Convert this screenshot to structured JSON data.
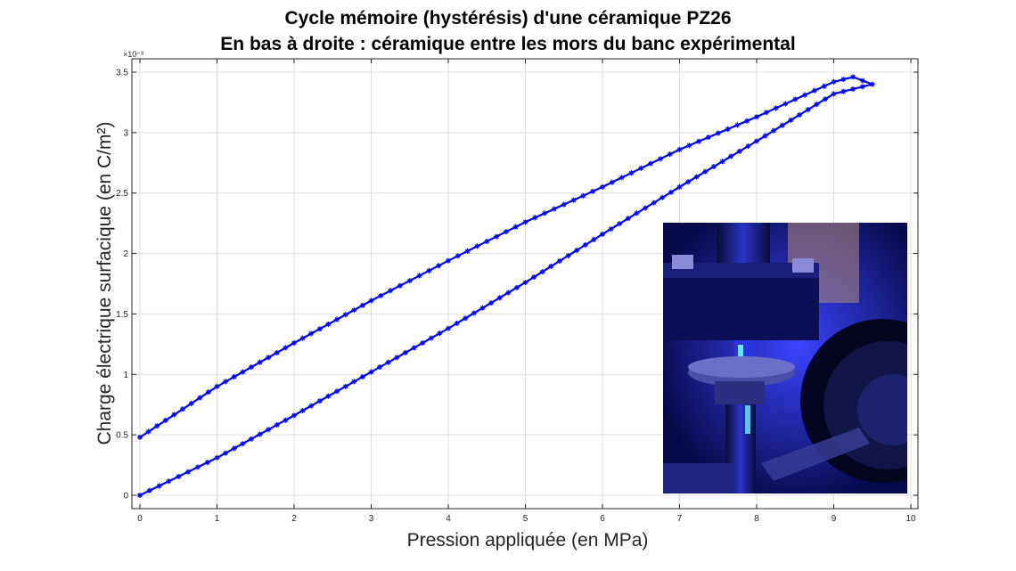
{
  "title_lines": [
    "Cycle mémoire (hystérésis) d'une céramique PZ26",
    "En bas à droite : céramique entre les mors du banc expérimental"
  ],
  "chart_data": {
    "type": "line",
    "xlabel": "Pression appliquée (en MPa)",
    "ylabel": "Charge électrique surfacique (en C/m²)",
    "y_exponent_label": "×10⁻³",
    "xlim": [
      0,
      10
    ],
    "ylim": [
      0,
      0.0035
    ],
    "x_ticks": [
      0,
      1,
      2,
      3,
      4,
      5,
      6,
      7,
      8,
      9,
      10
    ],
    "y_ticks": [
      0,
      0.0005,
      0.001,
      0.0015,
      0.002,
      0.0025,
      0.003,
      0.0035
    ],
    "x_tick_labels": [
      "0",
      "1",
      "2",
      "3",
      "4",
      "5",
      "6",
      "7",
      "8",
      "9",
      "10"
    ],
    "y_tick_labels": [
      "0",
      "0.5",
      "1",
      "1.5",
      "2",
      "2.5",
      "3",
      "3.5"
    ],
    "grid": true,
    "series_color": "#0000ff",
    "marker": "asterisk",
    "series": [
      {
        "loading_branch": {
          "x": [
            0,
            1,
            2,
            3,
            4,
            5,
            6,
            7,
            8,
            9,
            9.5
          ],
          "y": [
            0,
            0.00031,
            0.00066,
            0.00102,
            0.00138,
            0.00176,
            0.00216,
            0.00255,
            0.00293,
            0.00332,
            0.0034
          ]
        },
        "unloading_branch": {
          "x": [
            9.5,
            9.25,
            9,
            8,
            7,
            6,
            5,
            4,
            3,
            2,
            1,
            0
          ],
          "y": [
            0.0034,
            0.00346,
            0.00342,
            0.00313,
            0.00286,
            0.00255,
            0.00226,
            0.00194,
            0.00161,
            0.00126,
            0.0009,
            0.00048
          ]
        }
      }
    ]
  },
  "photo": {
    "subject": "ceramic between the jaws of the test bench",
    "accent_color": "#1a25ff"
  }
}
